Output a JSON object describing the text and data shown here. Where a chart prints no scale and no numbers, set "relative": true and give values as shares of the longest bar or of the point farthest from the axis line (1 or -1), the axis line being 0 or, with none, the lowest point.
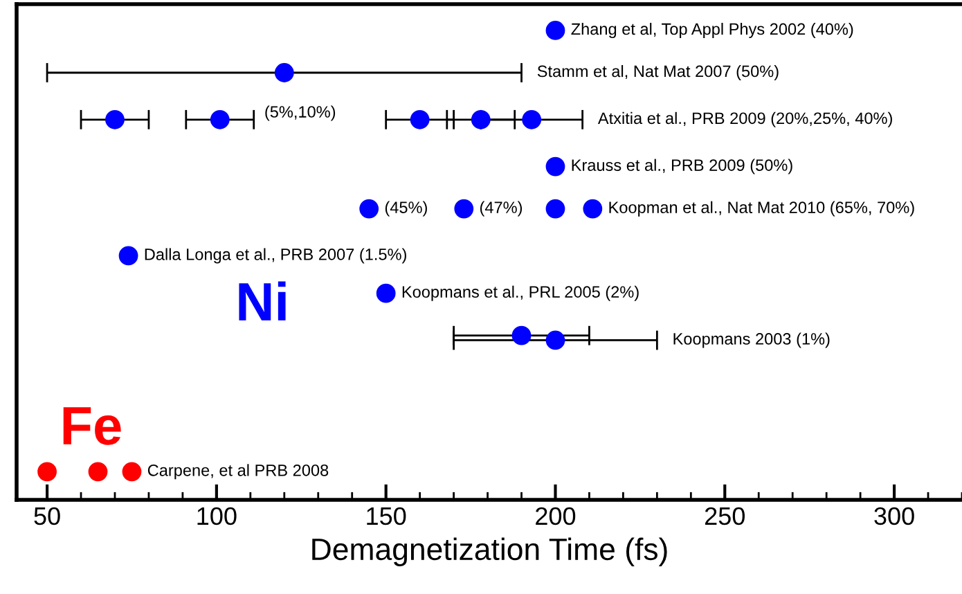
{
  "chart_data": {
    "type": "scatter",
    "relative": true,
    "xlabel": "Demagnetization Time (fs)",
    "xlim": [
      41,
      320
    ],
    "xticks": [
      50,
      100,
      150,
      200,
      250,
      300
    ],
    "tick_labels": "x",
    "grid": false,
    "legend": false,
    "marker": "circle",
    "annotations": [
      "Ni",
      "Fe",
      "(5%,10%)",
      {
        "text": "(45%)",
        "x": 145,
        "y": 0.62
      },
      {
        "text": "(47%)",
        "x": 173,
        "y": 0.62
      }
    ],
    "series": [
      {
        "name": "Zhang et al, Top Appl Phys 2002 (40%)",
        "color": "#0000ff",
        "x": [
          200
        ],
        "values": [
          1
        ]
      },
      {
        "name": "Stamm et al, Nat Mat 2007 (50%)",
        "color": "#0000ff",
        "x": [
          120
        ],
        "values": [
          0.91
        ],
        "xerrors": [
          70
        ]
      },
      {
        "name": "Atxitia et al., PRB 2009 (20%,25%, 40%)",
        "color": "#0000ff",
        "x": [
          70,
          101,
          160,
          178,
          193
        ],
        "values": [
          0.81,
          0.81,
          0.81,
          0.81,
          0.81
        ],
        "xerrors": [
          10,
          10,
          10,
          10,
          15
        ]
      },
      {
        "name": "Krauss et al., PRB 2009 (50%)",
        "color": "#0000ff",
        "x": [
          200
        ],
        "values": [
          0.71
        ]
      },
      {
        "name": "Koopman et al., Nat Mat 2010 (65%, 70%)",
        "color": "#0000ff",
        "x": [
          145,
          173,
          200,
          211
        ],
        "values": [
          0.62,
          0.62,
          0.62,
          0.62
        ]
      },
      {
        "name": "Dalla Longa et al., PRB 2007 (1.5%)",
        "color": "#0000ff",
        "x": [
          74
        ],
        "values": [
          0.52
        ]
      },
      {
        "name": "Koopmans et al., PRL 2005 (2%)",
        "color": "#0000ff",
        "x": [
          150
        ],
        "values": [
          0.44
        ]
      },
      {
        "name": "Koopmans 2003 (1%)",
        "color": "#0000ff",
        "x": [
          190,
          200
        ],
        "values": [
          0.35,
          0.34
        ],
        "xerrors": [
          20,
          30
        ]
      },
      {
        "name": "Carpene, et al PRB 2008",
        "color": "#ff0000",
        "x": [
          50,
          65,
          75
        ],
        "values": [
          0.06,
          0.06,
          0.06
        ]
      }
    ]
  }
}
